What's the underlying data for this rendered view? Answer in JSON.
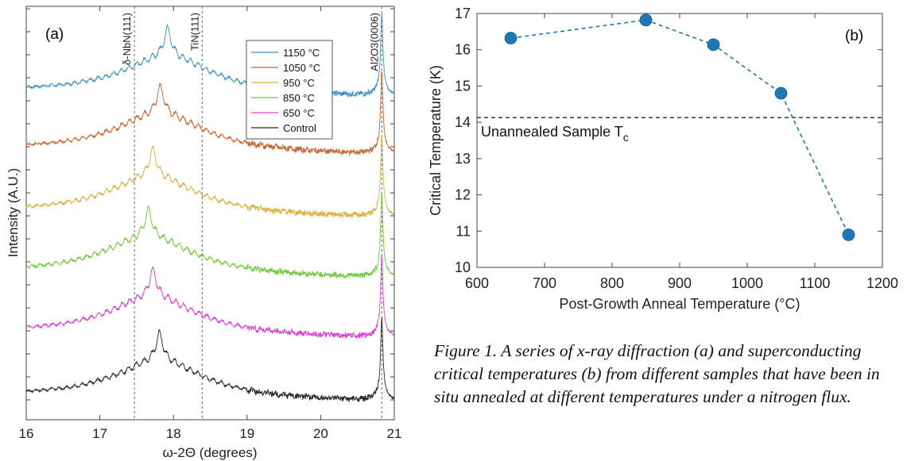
{
  "caption": "Figure 1. A series of x-ray diffraction (a) and superconducting critical temperatures (b) from different samples that have been in situ annealed at different temperatures under a nitrogen flux.",
  "chart_data": [
    {
      "type": "line",
      "panel_label": "(a)",
      "xlabel": "ω-2Θ (degrees)",
      "ylabel": "Intensity (A.U.)",
      "xlim": [
        16,
        21
      ],
      "xticks": [
        16,
        17,
        18,
        19,
        20,
        21
      ],
      "grid": false,
      "legend_position": "top-right",
      "reference_lines": [
        {
          "x": 17.47,
          "label": "δ-NbN(111)"
        },
        {
          "x": 18.39,
          "label": "TiN(111)"
        },
        {
          "x": 20.83,
          "label": "Al2O3(0006)"
        }
      ],
      "series": [
        {
          "name": "1150 °C",
          "color": "#3f8fc4",
          "peak_x": 17.92,
          "offset_rank": 5
        },
        {
          "name": "1050 °C",
          "color": "#c9622c",
          "peak_x": 17.82,
          "offset_rank": 4
        },
        {
          "name": "950 °C",
          "color": "#e0ac3c",
          "peak_x": 17.72,
          "offset_rank": 3
        },
        {
          "name": "850 °C",
          "color": "#6cc93a",
          "peak_x": 17.66,
          "offset_rank": 2
        },
        {
          "name": "650 °C",
          "color": "#d940cf",
          "peak_x": 17.72,
          "offset_rank": 1
        },
        {
          "name": "Control",
          "color": "#262626",
          "peak_x": 17.81,
          "offset_rank": 0
        }
      ]
    },
    {
      "type": "scatter",
      "panel_label": "(b)",
      "xlabel": "Post-Growth Anneal Temperature (°C)",
      "ylabel": "Critical Temperature (K)",
      "xlim": [
        600,
        1200
      ],
      "ylim": [
        10,
        17
      ],
      "xticks": [
        600,
        700,
        800,
        900,
        1000,
        1100,
        1200
      ],
      "yticks": [
        10,
        11,
        12,
        13,
        14,
        15,
        16,
        17
      ],
      "grid": false,
      "x": [
        650,
        850,
        950,
        1050,
        1150
      ],
      "y": [
        16.32,
        16.82,
        16.14,
        14.8,
        10.9
      ],
      "marker_color": "#1f77b4",
      "reference_line": {
        "y": 14.13,
        "label": "Unannealed Sample T",
        "label_sub": "c"
      }
    }
  ]
}
